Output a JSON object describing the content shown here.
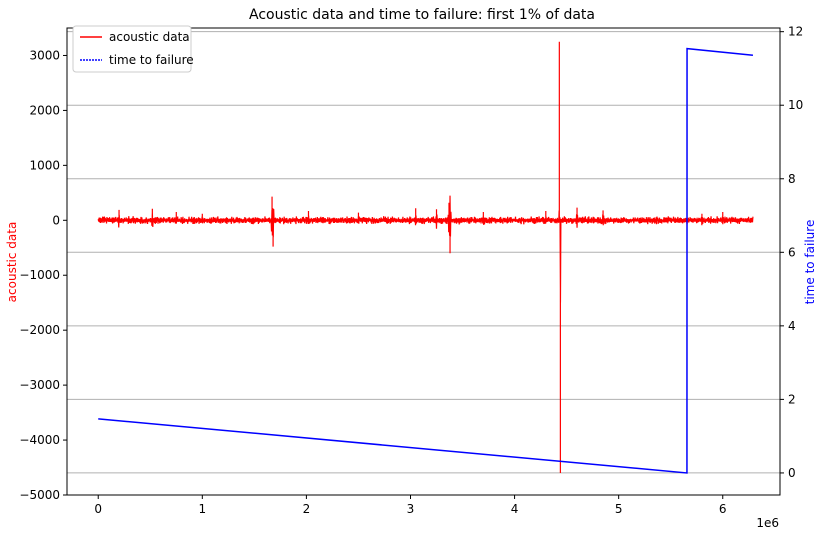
{
  "chart_data": {
    "type": "line",
    "title": "Acoustic data and time to failure: first 1% of data",
    "xlabel": "",
    "x_offset_label": "1e6",
    "xlim": [
      -0.3,
      6.55
    ],
    "x_ticks": [
      0,
      1,
      2,
      3,
      4,
      5,
      6
    ],
    "x_tick_labels": [
      "0",
      "1",
      "2",
      "3",
      "4",
      "5",
      "6"
    ],
    "left_axis": {
      "label": "acoustic data",
      "color": "#ff0000",
      "ylim": [
        -5000,
        3500
      ],
      "ticks": [
        -5000,
        -4000,
        -3000,
        -2000,
        -1000,
        0,
        1000,
        2000,
        3000
      ],
      "tick_labels": [
        "−5000",
        "−4000",
        "−3000",
        "−2000",
        "−1000",
        "0",
        "1000",
        "2000",
        "3000"
      ]
    },
    "right_axis": {
      "label": "time to failure",
      "color": "#0000ff",
      "ylim": [
        -0.6,
        12.1
      ],
      "ticks": [
        0,
        2,
        4,
        6,
        8,
        10,
        12
      ],
      "tick_labels": [
        "0",
        "2",
        "4",
        "6",
        "8",
        "10",
        "12"
      ]
    },
    "grid": "horizontal-right-axis",
    "legend_position": "top-left",
    "series": [
      {
        "name": "acoustic data",
        "color": "#ff0000",
        "axis": "left",
        "x_range": [
          0,
          6.29
        ],
        "baseline": 0,
        "noise_amplitude": 55,
        "bursts": [
          {
            "x": 0.2,
            "amp": 190
          },
          {
            "x": 0.52,
            "amp": 210
          },
          {
            "x": 0.75,
            "amp": 150
          },
          {
            "x": 1.0,
            "amp": 120
          },
          {
            "x": 1.67,
            "amp": 430
          },
          {
            "x": 1.68,
            "amp": -480
          },
          {
            "x": 2.02,
            "amp": 170
          },
          {
            "x": 2.5,
            "amp": 140
          },
          {
            "x": 3.05,
            "amp": 220
          },
          {
            "x": 3.25,
            "amp": 200
          },
          {
            "x": 3.37,
            "amp": 320
          },
          {
            "x": 3.38,
            "amp": -600
          },
          {
            "x": 3.7,
            "amp": 150
          },
          {
            "x": 4.3,
            "amp": 170
          },
          {
            "x": 4.43,
            "amp": 3250
          },
          {
            "x": 4.44,
            "amp": -4600
          },
          {
            "x": 4.6,
            "amp": 230
          },
          {
            "x": 4.85,
            "amp": 180
          },
          {
            "x": 5.8,
            "amp": 120
          },
          {
            "x": 6.0,
            "amp": 150
          }
        ]
      },
      {
        "name": "time to failure",
        "color": "#0000ff",
        "axis": "right",
        "x": [
          0,
          5.656,
          5.657,
          6.29
        ],
        "y": [
          1.47,
          0.0,
          11.54,
          11.36
        ]
      }
    ]
  }
}
